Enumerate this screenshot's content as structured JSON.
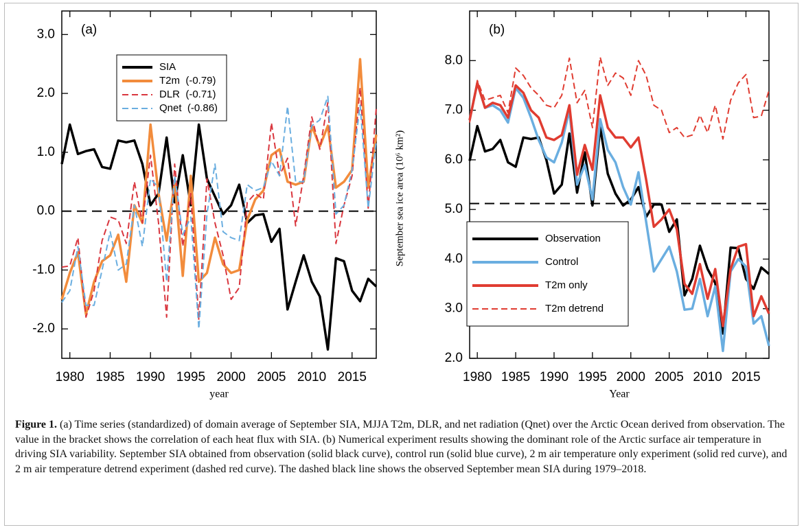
{
  "chart_data": [
    {
      "type": "line",
      "panel": "(a)",
      "xlabel": "year",
      "x": [
        1979,
        1980,
        1981,
        1982,
        1983,
        1984,
        1985,
        1986,
        1987,
        1988,
        1989,
        1990,
        1991,
        1992,
        1993,
        1994,
        1995,
        1996,
        1997,
        1998,
        1999,
        2000,
        2001,
        2002,
        2003,
        2004,
        2005,
        2006,
        2007,
        2008,
        2009,
        2010,
        2011,
        2012,
        2013,
        2014,
        2015,
        2016,
        2017,
        2018
      ],
      "xlim": [
        1979,
        2018
      ],
      "xticks": [
        1980,
        1985,
        1990,
        1995,
        2000,
        2005,
        2010,
        2015
      ],
      "ylim": [
        -2.5,
        3.4
      ],
      "yticks": [
        {
          "value": -2,
          "label": "-2.0"
        },
        {
          "value": -1,
          "label": "-1.0"
        },
        {
          "value": 0,
          "label": "0.0"
        },
        {
          "value": 1,
          "label": "1.0"
        },
        {
          "value": 2,
          "label": "2.0"
        },
        {
          "value": 3,
          "label": "3.0"
        }
      ],
      "hline": 0,
      "legend": "upper left",
      "series": [
        {
          "name": "SIA",
          "color": "#000000",
          "dashed": false,
          "values": [
            0.8,
            1.47,
            0.97,
            1.02,
            1.05,
            0.75,
            0.72,
            1.2,
            1.17,
            1.2,
            0.8,
            0.1,
            0.3,
            1.25,
            0.15,
            0.95,
            0.1,
            1.47,
            0.55,
            0.25,
            -0.05,
            0.1,
            0.45,
            -0.2,
            -0.07,
            -0.05,
            -0.52,
            -0.3,
            -1.67,
            -1.2,
            -0.75,
            -1.2,
            -1.45,
            -2.35,
            -0.8,
            -0.85,
            -1.35,
            -1.53,
            -1.15,
            -1.28
          ]
        },
        {
          "name": "T2m  (-0.79)",
          "color": "#f28c3c",
          "dashed": false,
          "values": [
            -1.5,
            -1.05,
            -0.7,
            -1.75,
            -1.2,
            -0.85,
            -0.75,
            -0.4,
            -1.2,
            0.1,
            -0.2,
            1.47,
            0.3,
            -0.5,
            0.5,
            -1.1,
            0.6,
            -1.2,
            -1.05,
            -0.45,
            -0.9,
            -1.05,
            -1.0,
            -0.15,
            0.2,
            0.35,
            0.95,
            1.05,
            0.5,
            0.45,
            0.5,
            1.45,
            1.1,
            1.45,
            0.4,
            0.5,
            0.7,
            2.58,
            0.4,
            1.3
          ]
        },
        {
          "name": "DLR  (-0.71)",
          "color": "#d9363e",
          "dashed": true,
          "values": [
            -0.95,
            -0.93,
            -0.45,
            -1.8,
            -1.35,
            -0.5,
            -0.1,
            -0.15,
            -0.55,
            0.5,
            -0.2,
            0.95,
            -0.2,
            -1.8,
            0.8,
            -0.6,
            0.3,
            -1.85,
            0.55,
            -0.2,
            -0.75,
            -1.5,
            -1.3,
            0.15,
            0.3,
            0.2,
            1.5,
            0.6,
            0.9,
            -0.25,
            0.6,
            1.6,
            1.05,
            1.85,
            -0.55,
            0.1,
            0.6,
            2.1,
            0.05,
            1.75
          ]
        },
        {
          "name": "Qnet  (-0.86)",
          "color": "#6aaee0",
          "dashed": true,
          "values": [
            -1.55,
            -1.35,
            -0.6,
            -1.6,
            -1.6,
            -1.0,
            -0.35,
            -1.0,
            -0.9,
            0.1,
            -0.6,
            0.55,
            0.4,
            -1.2,
            0.6,
            -0.4,
            -0.1,
            -2.0,
            -0.05,
            0.8,
            -0.35,
            -0.45,
            -0.5,
            0.45,
            0.35,
            0.4,
            0.85,
            0.6,
            1.78,
            0.5,
            0.5,
            1.45,
            1.55,
            1.95,
            -0.05,
            0.1,
            0.7,
            1.8,
            0.05,
            1.2
          ]
        }
      ]
    },
    {
      "type": "line",
      "panel": "(b)",
      "xlabel": "Year",
      "ylabel": "September sea ice area (10⁶ km²)",
      "x": [
        1979,
        1980,
        1981,
        1982,
        1983,
        1984,
        1985,
        1986,
        1987,
        1988,
        1989,
        1990,
        1991,
        1992,
        1993,
        1994,
        1995,
        1996,
        1997,
        1998,
        1999,
        2000,
        2001,
        2002,
        2003,
        2004,
        2005,
        2006,
        2007,
        2008,
        2009,
        2010,
        2011,
        2012,
        2013,
        2014,
        2015,
        2016,
        2017,
        2018
      ],
      "xlim": [
        1979,
        2018
      ],
      "xticks": [
        1980,
        1985,
        1990,
        1995,
        2000,
        2005,
        2010,
        2015
      ],
      "ylim": [
        2.0,
        9.0
      ],
      "yticks": [
        {
          "value": 2,
          "label": "2.0"
        },
        {
          "value": 3,
          "label": "3.0"
        },
        {
          "value": 4,
          "label": "4.0"
        },
        {
          "value": 5,
          "label": "5.0"
        },
        {
          "value": 6,
          "label": "6.0"
        },
        {
          "value": 7,
          "label": "7.0"
        },
        {
          "value": 8,
          "label": "8.0"
        }
      ],
      "hline": 5.12,
      "legend": "lower left",
      "series": [
        {
          "name": "Observation",
          "color": "#000000",
          "dashed": false,
          "values": [
            5.98,
            6.68,
            6.17,
            6.22,
            6.4,
            5.95,
            5.86,
            6.45,
            6.42,
            6.45,
            6.0,
            5.32,
            5.5,
            6.53,
            5.34,
            6.15,
            5.08,
            6.66,
            5.72,
            5.32,
            5.08,
            5.2,
            5.45,
            4.85,
            5.1,
            5.1,
            4.55,
            4.8,
            3.27,
            3.6,
            4.27,
            3.8,
            3.52,
            2.5,
            4.23,
            4.22,
            3.6,
            3.4,
            3.83,
            3.7
          ]
        },
        {
          "name": "Control",
          "color": "#6aaee0",
          "dashed": false,
          "values": [
            6.8,
            7.55,
            7.05,
            7.1,
            7.0,
            6.75,
            7.45,
            7.25,
            6.85,
            6.4,
            6.05,
            5.95,
            6.35,
            7.0,
            5.5,
            5.9,
            5.2,
            6.82,
            6.2,
            5.95,
            5.45,
            5.1,
            5.75,
            4.75,
            3.75,
            4.0,
            4.25,
            3.75,
            2.98,
            3.0,
            3.6,
            2.85,
            3.45,
            2.15,
            3.75,
            4.0,
            3.85,
            2.7,
            2.85,
            2.25
          ]
        },
        {
          "name": "T2m only",
          "color": "#e03c31",
          "dashed": false,
          "values": [
            6.8,
            7.55,
            7.05,
            7.15,
            7.1,
            6.85,
            7.5,
            7.35,
            7.0,
            6.85,
            6.45,
            6.4,
            6.5,
            7.1,
            5.7,
            6.3,
            5.8,
            7.3,
            6.65,
            6.45,
            6.45,
            6.25,
            6.45,
            5.6,
            4.65,
            4.8,
            5.0,
            4.6,
            3.5,
            3.3,
            3.9,
            3.2,
            3.8,
            2.65,
            3.8,
            4.25,
            4.3,
            2.85,
            3.25,
            2.9
          ]
        },
        {
          "name": "T2m detrend",
          "color": "#e03c31",
          "dashed": true,
          "values": [
            6.75,
            7.6,
            7.2,
            7.25,
            7.3,
            6.95,
            7.85,
            7.7,
            7.45,
            7.3,
            7.1,
            7.05,
            7.3,
            8.05,
            7.15,
            7.4,
            6.65,
            8.07,
            7.5,
            7.75,
            7.65,
            7.3,
            8.0,
            7.7,
            7.1,
            7.0,
            6.55,
            6.65,
            6.45,
            6.5,
            6.9,
            6.55,
            7.1,
            6.42,
            7.2,
            7.55,
            7.72,
            6.85,
            6.88,
            7.4
          ]
        }
      ]
    }
  ],
  "caption": {
    "label": "Figure 1.",
    "text": "(a) Time series (standardized) of domain average of September SIA, MJJA T2m, DLR, and net radiation (Qnet) over the Arctic Ocean derived from observation. The value in the bracket shows the correlation of each heat flux with SIA. (b) Numerical experiment results showing the dominant role of the Arctic surface air temperature in driving SIA variability. September SIA obtained from observation (solid black curve), control run (solid blue curve), 2 m air temperature only experiment (solid red curve), and 2 m air temperature detrend experiment (dashed red curve). The dashed black line shows the observed September mean SIA during 1979–2018."
  }
}
